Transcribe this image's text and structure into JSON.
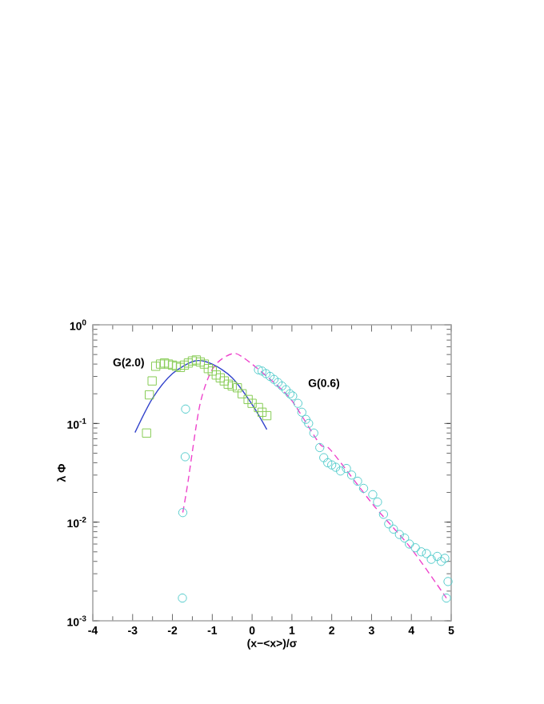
{
  "chart_data": {
    "type": "scatter",
    "xlabel": "(x−<x>)/σ",
    "ylabel": "λ Φ",
    "log": "y",
    "xlim": [
      -4,
      5
    ],
    "xticks": [
      -4,
      -3,
      -2,
      -1,
      0,
      1,
      2,
      3,
      4,
      5
    ],
    "ylim": [
      0.001,
      1
    ],
    "yticks": [
      {
        "value": 0.001,
        "label": "10$^{-3}$"
      },
      {
        "value": 0.01,
        "label": "10$^{-2}$"
      },
      {
        "value": 0.1,
        "label": "10$^{-1}$"
      },
      {
        "value": 1,
        "label": "10$^{0}$"
      }
    ],
    "annotations": [
      "G(2.0)",
      "G(0.6)"
    ],
    "series": [
      {
        "marker": "square",
        "color": "#88cc55",
        "x": [
          -2.65,
          -2.58,
          -2.51,
          -2.42,
          -2.3,
          -2.2,
          -2.1,
          -2.0,
          -1.9,
          -1.8,
          -1.7,
          -1.6,
          -1.5,
          -1.4,
          -1.3,
          -1.2,
          -1.1,
          -1.0,
          -0.9,
          -0.8,
          -0.7,
          -0.6,
          -0.5,
          -0.37,
          -0.25,
          -0.1,
          0.0,
          0.16,
          0.25,
          0.37
        ],
        "values": [
          0.08,
          0.195,
          0.27,
          0.38,
          0.4,
          0.41,
          0.4,
          0.39,
          0.38,
          0.37,
          0.39,
          0.41,
          0.43,
          0.44,
          0.42,
          0.4,
          0.36,
          0.34,
          0.31,
          0.29,
          0.27,
          0.25,
          0.24,
          0.23,
          0.2,
          0.175,
          0.16,
          0.145,
          0.13,
          0.12
        ]
      },
      {
        "type": "line",
        "line_style": "solid",
        "color": "#3344cc",
        "x": [
          -2.94,
          -2.5,
          -2.0,
          -1.44,
          -1.0,
          -0.5,
          0.0,
          0.37
        ],
        "values": [
          0.081,
          0.18,
          0.32,
          0.43,
          0.4,
          0.29,
          0.156,
          0.087
        ]
      },
      {
        "marker": "circle",
        "color": "#55cccc",
        "x": [
          -1.75,
          -1.74,
          -1.68,
          -1.67,
          0.16,
          0.25,
          0.35,
          0.45,
          0.55,
          0.65,
          0.75,
          0.85,
          0.95,
          1.02,
          1.15,
          1.25,
          1.35,
          1.42,
          1.55,
          1.7,
          1.8,
          1.9,
          2.0,
          2.1,
          2.22,
          2.37,
          2.5,
          2.65,
          2.8,
          3.03,
          3.15,
          3.3,
          3.43,
          3.55,
          3.7,
          3.83,
          3.95,
          4.1,
          4.25,
          4.38,
          4.5,
          4.65,
          4.75,
          4.84,
          4.88,
          4.92
        ],
        "values": [
          0.0017,
          0.0125,
          0.046,
          0.14,
          0.35,
          0.34,
          0.32,
          0.3,
          0.28,
          0.26,
          0.24,
          0.22,
          0.2,
          0.19,
          0.16,
          0.13,
          0.11,
          0.1,
          0.08,
          0.057,
          0.045,
          0.04,
          0.038,
          0.036,
          0.033,
          0.035,
          0.03,
          0.026,
          0.022,
          0.019,
          0.016,
          0.012,
          0.0096,
          0.0085,
          0.0075,
          0.0069,
          0.006,
          0.0055,
          0.005,
          0.0048,
          0.0042,
          0.0045,
          0.004,
          0.0043,
          0.0017,
          0.0025
        ]
      },
      {
        "type": "line",
        "line_style": "dashed",
        "color": "#ee44cc",
        "x": [
          -1.74,
          -1.62,
          -1.31,
          -0.97,
          -0.5,
          -0.17,
          0.5,
          1.0,
          1.7,
          1.97,
          3.04,
          3.98,
          4.88
        ],
        "values": [
          0.0125,
          0.024,
          0.155,
          0.37,
          0.51,
          0.45,
          0.27,
          0.17,
          0.062,
          0.054,
          0.015,
          0.0055,
          0.0017
        ]
      }
    ]
  }
}
